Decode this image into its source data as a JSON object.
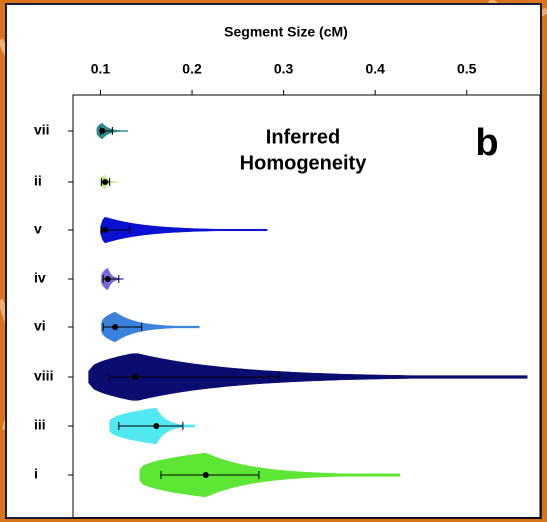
{
  "chart_data": {
    "type": "violin",
    "title": "Segment Size (cM)",
    "annotation_lines": [
      "Inferred",
      "Homogeneity"
    ],
    "panel_label": "b",
    "categories": [
      "vii",
      "ii",
      "v",
      "iv",
      "vi",
      "viii",
      "iii",
      "i"
    ],
    "series": [
      {
        "name": "vii",
        "color": "#2f8a8c",
        "min": 0.096,
        "q1": 0.1,
        "median": 0.102,
        "q3": 0.113,
        "max": 0.13
      },
      {
        "name": "ii",
        "color": "#c9ec8e",
        "min": 0.1,
        "q1": 0.101,
        "median": 0.105,
        "q3": 0.11,
        "max": 0.119
      },
      {
        "name": "v",
        "color": "#0a10d0",
        "min": 0.1,
        "q1": 0.101,
        "median": 0.105,
        "q3": 0.132,
        "max": 0.282
      },
      {
        "name": "iv",
        "color": "#7b68dc",
        "min": 0.101,
        "q1": 0.103,
        "median": 0.108,
        "q3": 0.12,
        "max": 0.125
      },
      {
        "name": "vi",
        "color": "#3a82dc",
        "min": 0.101,
        "q1": 0.103,
        "median": 0.116,
        "q3": 0.145,
        "max": 0.208
      },
      {
        "name": "viii",
        "color": "#0b0c70",
        "min": 0.087,
        "q1": 0.11,
        "median": 0.138,
        "q3": 0.295,
        "max": 0.566
      },
      {
        "name": "iii",
        "color": "#52e8f2",
        "min": 0.11,
        "q1": 0.12,
        "median": 0.161,
        "q3": 0.19,
        "max": 0.203
      },
      {
        "name": "i",
        "color": "#5de634",
        "min": 0.143,
        "q1": 0.166,
        "median": 0.215,
        "q3": 0.273,
        "max": 0.427
      }
    ],
    "xlim": [
      0.07,
      0.58
    ],
    "xticks": [
      0.1,
      0.2,
      0.3,
      0.4,
      0.5
    ]
  }
}
